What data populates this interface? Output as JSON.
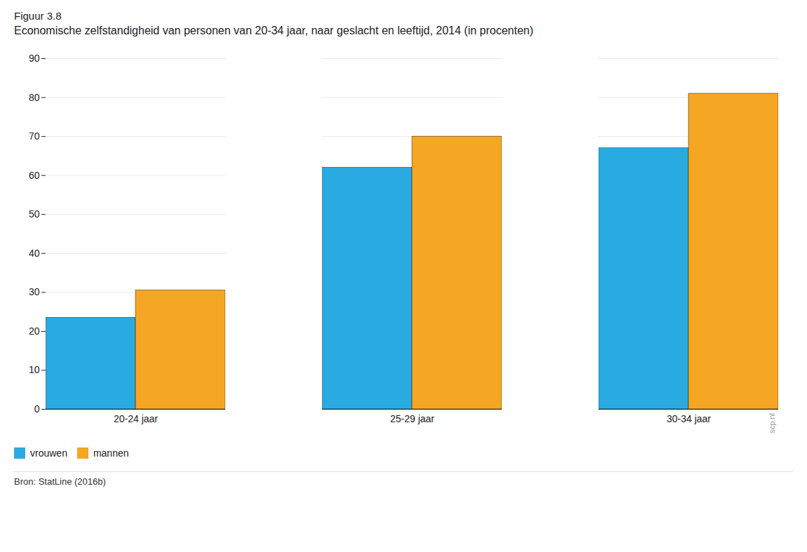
{
  "chart_data": {
    "type": "bar",
    "fig_label": "Figuur 3.8",
    "title": "Economische zelfstandigheid van personen van 20-34 jaar, naar geslacht en leeftijd, 2014 (in procenten)",
    "categories": [
      "20-24 jaar",
      "25-29 jaar",
      "30-34 jaar"
    ],
    "series": [
      {
        "name": "vrouwen",
        "color": "#29ABE2",
        "values": [
          23.5,
          62,
          67
        ]
      },
      {
        "name": "mannen",
        "color": "#F5A623",
        "values": [
          30.5,
          70,
          81
        ]
      }
    ],
    "ylim": [
      0,
      90
    ],
    "yticks": [
      0,
      10,
      20,
      30,
      40,
      50,
      60,
      70,
      80,
      90
    ],
    "grid": true,
    "legend": "bottom",
    "annotations": [
      "scp.nl"
    ],
    "source": "Bron: StatLine (2016b)"
  }
}
